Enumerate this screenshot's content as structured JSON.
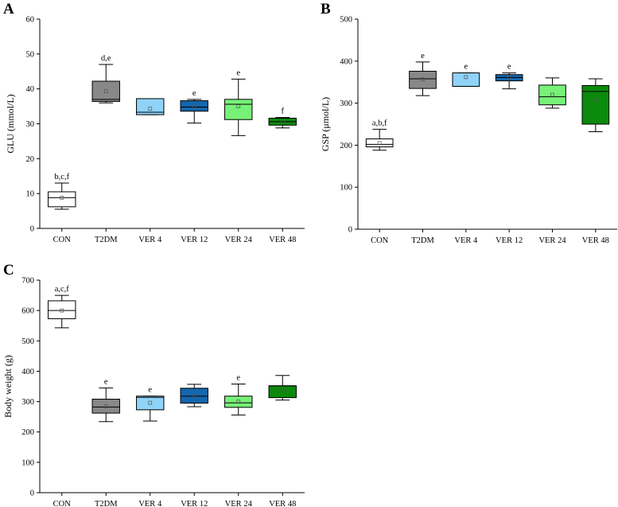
{
  "colors": {
    "CON": "#ffffff",
    "T2DM": "#888888",
    "VER 4": "#8fd3f8",
    "VER 12": "#1466ad",
    "VER 24": "#77f177",
    "VER 48": "#0b8a0b"
  },
  "chart_data": [
    {
      "type": "box",
      "panel_label": "A",
      "ylabel": "GLU (mmol/L)",
      "ylim": [
        0,
        60
      ],
      "yticks": [
        0,
        10,
        20,
        30,
        40,
        50,
        60
      ],
      "categories": [
        "CON",
        "T2DM",
        "VER 4",
        "VER 12",
        "VER 24",
        "VER 48"
      ],
      "boxes": [
        {
          "whisker_low": 5.5,
          "q1": 6.2,
          "median": 8.8,
          "q3": 10.5,
          "whisker_high": 13.0,
          "mean": 8.8,
          "annotation": "b,c,f"
        },
        {
          "whisker_low": 36.0,
          "q1": 36.4,
          "median": 37.0,
          "q3": 42.2,
          "whisker_high": 47.0,
          "mean": 39.3,
          "annotation": "d,e"
        },
        {
          "whisker_low": 32.6,
          "q1": 32.6,
          "median": 33.3,
          "q3": 37.2,
          "whisker_high": 37.2,
          "mean": 34.3,
          "annotation": ""
        },
        {
          "whisker_low": 30.2,
          "q1": 33.6,
          "median": 34.8,
          "q3": 36.6,
          "whisker_high": 37.0,
          "mean": 34.9,
          "annotation": "e"
        },
        {
          "whisker_low": 26.6,
          "q1": 31.2,
          "median": 35.6,
          "q3": 37.0,
          "whisker_high": 42.8,
          "mean": 35.0,
          "annotation": "e"
        },
        {
          "whisker_low": 28.8,
          "q1": 29.6,
          "median": 30.6,
          "q3": 31.6,
          "whisker_high": 31.8,
          "mean": 30.6,
          "annotation": "f"
        }
      ]
    },
    {
      "type": "box",
      "panel_label": "B",
      "ylabel": "GSP (μmol/L)",
      "ylim": [
        0,
        500
      ],
      "yticks": [
        0,
        100,
        200,
        300,
        400,
        500
      ],
      "categories": [
        "CON",
        "T2DM",
        "VER 4",
        "VER 12",
        "VER 24",
        "VER 48"
      ],
      "boxes": [
        {
          "whisker_low": 188,
          "q1": 196,
          "median": 202,
          "q3": 215,
          "whisker_high": 238,
          "mean": 205,
          "annotation": "a,b,f"
        },
        {
          "whisker_low": 318,
          "q1": 335,
          "median": 358,
          "q3": 376,
          "whisker_high": 398,
          "mean": 357,
          "annotation": "e"
        },
        {
          "whisker_low": 340,
          "q1": 340,
          "median": 340,
          "q3": 372,
          "whisker_high": 372,
          "mean": 362,
          "annotation": "e"
        },
        {
          "whisker_low": 334,
          "q1": 353,
          "median": 361,
          "q3": 368,
          "whisker_high": 372,
          "mean": 361,
          "annotation": "e"
        },
        {
          "whisker_low": 288,
          "q1": 296,
          "median": 315,
          "q3": 343,
          "whisker_high": 360,
          "mean": 320,
          "annotation": ""
        },
        {
          "whisker_low": 232,
          "q1": 250,
          "median": 328,
          "q3": 342,
          "whisker_high": 358,
          "mean": 308,
          "annotation": ""
        }
      ]
    },
    {
      "type": "box",
      "panel_label": "C",
      "ylabel": "Body weight (g)",
      "ylim": [
        0,
        700
      ],
      "yticks": [
        0,
        100,
        200,
        300,
        400,
        500,
        600,
        700
      ],
      "categories": [
        "CON",
        "T2DM",
        "VER 4",
        "VER 12",
        "VER 24",
        "VER 48"
      ],
      "boxes": [
        {
          "whisker_low": 543,
          "q1": 573,
          "median": 600,
          "q3": 632,
          "whisker_high": 650,
          "mean": 600,
          "annotation": "a,c,f"
        },
        {
          "whisker_low": 234,
          "q1": 262,
          "median": 282,
          "q3": 308,
          "whisker_high": 345,
          "mean": 285,
          "annotation": "e"
        },
        {
          "whisker_low": 236,
          "q1": 273,
          "median": 314,
          "q3": 318,
          "whisker_high": 318,
          "mean": 296,
          "annotation": "e"
        },
        {
          "whisker_low": 283,
          "q1": 295,
          "median": 318,
          "q3": 344,
          "whisker_high": 357,
          "mean": 318,
          "annotation": ""
        },
        {
          "whisker_low": 256,
          "q1": 281,
          "median": 296,
          "q3": 318,
          "whisker_high": 358,
          "mean": 300,
          "annotation": "e"
        },
        {
          "whisker_low": 305,
          "q1": 313,
          "median": 352,
          "q3": 352,
          "whisker_high": 386,
          "mean": 338,
          "annotation": ""
        }
      ]
    }
  ]
}
